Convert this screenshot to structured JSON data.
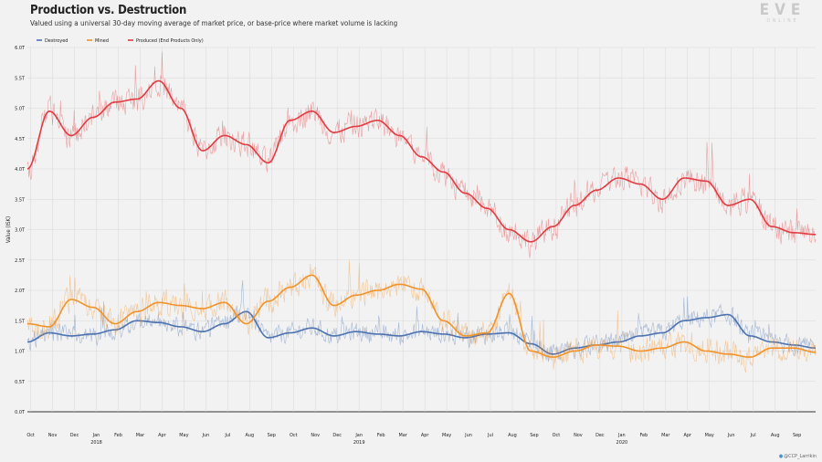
{
  "title": "Production vs. Destruction",
  "subtitle": "Valued using a universal 30-day moving average of market price, or base-price where market volume is lacking",
  "logo": {
    "main": "EVE",
    "sub": "ONLINE"
  },
  "credit": {
    "icon": "twitter-bird-icon",
    "handle": "@CCP_Larrikin"
  },
  "colors": {
    "destroyed": "#4c72b0",
    "mined": "#f0932b",
    "produced": "#e03c41",
    "grid": "#d8d8d8",
    "axis": "#333333",
    "text": "#222222"
  },
  "chart_data": {
    "type": "line",
    "title": "Production vs. Destruction",
    "ylabel": "Value (ISK)",
    "xlabel": "",
    "ylim": [
      0,
      6.0
    ],
    "ytick_labels": [
      "0.0T",
      "0.5T",
      "1.0T",
      "1.5T",
      "2.0T",
      "2.5T",
      "3.0T",
      "3.5T",
      "4.0T",
      "4.5T",
      "5.0T",
      "5.5T",
      "6.0T"
    ],
    "ytick_values": [
      0,
      0.5,
      1.0,
      1.5,
      2.0,
      2.5,
      3.0,
      3.5,
      4.0,
      4.5,
      5.0,
      5.5,
      6.0
    ],
    "unit": "trillion ISK",
    "x_range_months": [
      0,
      36
    ],
    "x_note": "x is months elapsed since 1 Oct 2017 (Oct 2017 to Sep 2020)",
    "xtick_labels": [
      "Oct",
      "Nov",
      "Dec",
      "Jan",
      "Feb",
      "Mar",
      "Apr",
      "May",
      "Jun",
      "Jul",
      "Aug",
      "Sep",
      "Oct",
      "Nov",
      "Dec",
      "Jan",
      "Feb",
      "Mar",
      "Apr",
      "May",
      "Jun",
      "Jul",
      "Aug",
      "Sep",
      "Oct",
      "Nov",
      "Dec",
      "Jan",
      "Feb",
      "Mar",
      "Apr",
      "May",
      "Jun",
      "Jul",
      "Aug",
      "Sep"
    ],
    "year_labels": [
      {
        "month_index": 3,
        "label": "2018"
      },
      {
        "month_index": 15,
        "label": "2019"
      },
      {
        "month_index": 27,
        "label": "2020"
      }
    ],
    "legend": [
      "Destroyed",
      "Mined",
      "Produced (End Products Only)"
    ],
    "legend_position": "top-left",
    "grid": true,
    "series": [
      {
        "name": "Destroyed",
        "color_key": "destroyed",
        "x": [
          0,
          1,
          2,
          3,
          4,
          5,
          6,
          7,
          8,
          9,
          10,
          11,
          12,
          13,
          14,
          15,
          16,
          17,
          18,
          19,
          20,
          21,
          22,
          23,
          24,
          25,
          26,
          27,
          28,
          29,
          30,
          31,
          32,
          33,
          34,
          35,
          36
        ],
        "ma": [
          1.15,
          1.3,
          1.25,
          1.28,
          1.35,
          1.5,
          1.47,
          1.4,
          1.32,
          1.45,
          1.65,
          1.22,
          1.3,
          1.38,
          1.25,
          1.32,
          1.28,
          1.25,
          1.32,
          1.28,
          1.22,
          1.28,
          1.3,
          1.12,
          0.95,
          1.05,
          1.1,
          1.15,
          1.25,
          1.3,
          1.5,
          1.55,
          1.6,
          1.25,
          1.15,
          1.1,
          1.05
        ],
        "noise_amplitude": 0.22
      },
      {
        "name": "Mined",
        "color_key": "mined",
        "x": [
          0,
          1,
          2,
          3,
          4,
          5,
          6,
          7,
          8,
          9,
          10,
          11,
          12,
          13,
          14,
          15,
          16,
          17,
          18,
          19,
          20,
          21,
          22,
          23,
          24,
          25,
          26,
          27,
          28,
          29,
          30,
          31,
          32,
          33,
          34,
          35,
          36
        ],
        "ma": [
          1.45,
          1.4,
          1.85,
          1.72,
          1.45,
          1.65,
          1.8,
          1.75,
          1.7,
          1.8,
          1.45,
          1.82,
          2.05,
          2.25,
          1.75,
          1.92,
          2.0,
          2.1,
          2.02,
          1.5,
          1.25,
          1.3,
          1.95,
          1.0,
          0.9,
          1.0,
          1.1,
          1.08,
          1.0,
          1.05,
          1.15,
          1.0,
          0.95,
          0.9,
          1.05,
          1.05,
          0.98
        ],
        "noise_amplitude": 0.28
      },
      {
        "name": "Produced (End Products Only)",
        "color_key": "produced",
        "x": [
          0,
          1,
          2,
          3,
          4,
          5,
          6,
          7,
          8,
          9,
          10,
          11,
          12,
          13,
          14,
          15,
          16,
          17,
          18,
          19,
          20,
          21,
          22,
          23,
          24,
          25,
          26,
          27,
          28,
          29,
          30,
          31,
          32,
          33,
          34,
          35,
          36
        ],
        "ma": [
          4.0,
          4.95,
          4.55,
          4.85,
          5.1,
          5.15,
          5.45,
          5.0,
          4.3,
          4.55,
          4.4,
          4.1,
          4.8,
          4.95,
          4.6,
          4.7,
          4.8,
          4.55,
          4.2,
          3.95,
          3.6,
          3.35,
          3.0,
          2.8,
          3.05,
          3.4,
          3.65,
          3.85,
          3.75,
          3.5,
          3.85,
          3.8,
          3.4,
          3.5,
          3.05,
          2.95,
          2.92
        ],
        "noise_amplitude": 0.3
      }
    ]
  }
}
